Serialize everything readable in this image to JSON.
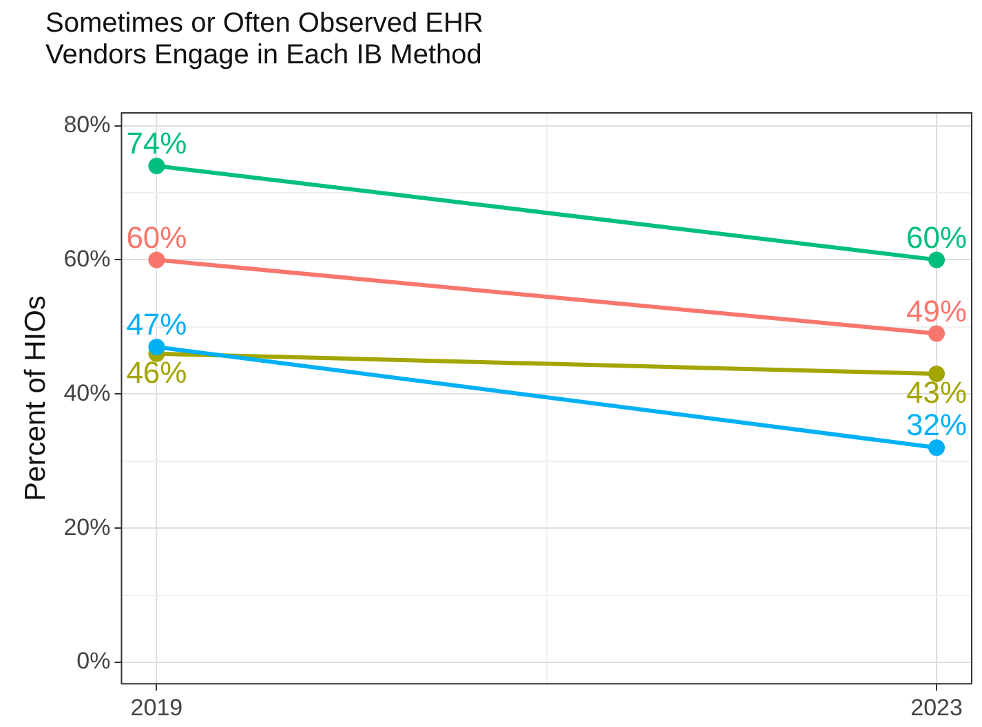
{
  "chart_data": {
    "type": "line",
    "title": "Sometimes or Often Observed EHR\nVendors Engage in Each IB Method",
    "ylabel": "Percent of HIOs",
    "x": [
      2019,
      2023
    ],
    "series": [
      {
        "color": "#00bf7d",
        "values": [
          74,
          60
        ],
        "value_labels": [
          "74%",
          "60%"
        ]
      },
      {
        "color": "#f8766d",
        "values": [
          60,
          49
        ],
        "value_labels": [
          "60%",
          "49%"
        ]
      },
      {
        "color": "#00b0f6",
        "values": [
          47,
          32
        ],
        "value_labels": [
          "47%",
          "32%"
        ]
      },
      {
        "color": "#a3a500",
        "values": [
          46,
          43
        ],
        "value_labels": [
          "46%",
          "43%"
        ]
      }
    ],
    "xlim": [
      2018.82,
      2023.18
    ],
    "xticks": [
      {
        "value": 2019,
        "label": "2019"
      },
      {
        "value": 2021,
        "label": null
      },
      {
        "value": 2023,
        "label": "2023"
      }
    ],
    "ylim": [
      -3.2,
      81.9
    ],
    "yticks": [
      {
        "value": 0,
        "label": "0%"
      },
      {
        "value": 10,
        "label": null
      },
      {
        "value": 20,
        "label": "20%"
      },
      {
        "value": 30,
        "label": null
      },
      {
        "value": 40,
        "label": "40%"
      },
      {
        "value": 50,
        "label": null
      },
      {
        "value": 60,
        "label": "60%"
      },
      {
        "value": 70,
        "label": null
      },
      {
        "value": 80,
        "label": "80%"
      }
    ],
    "grid": true,
    "legend": false,
    "marker": "circle",
    "line_style": "solid"
  }
}
